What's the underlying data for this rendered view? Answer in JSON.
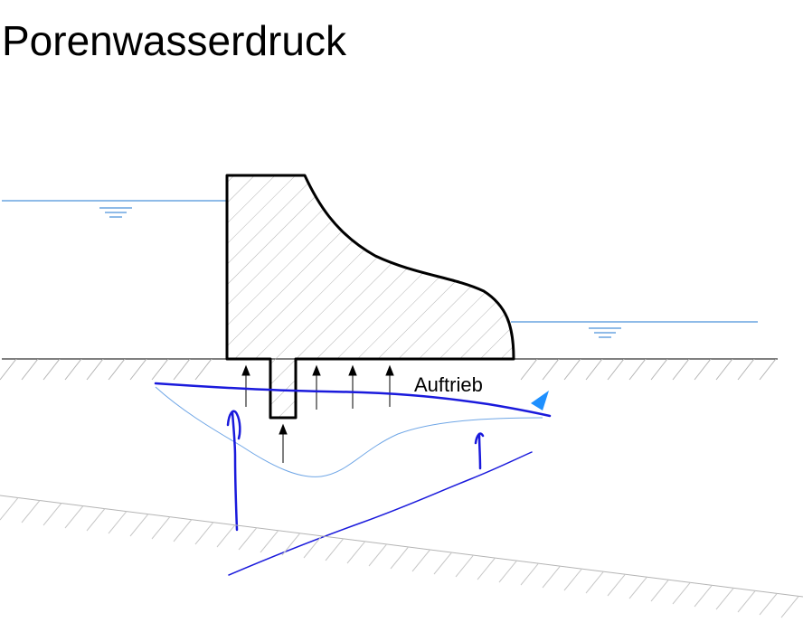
{
  "title": "Porenwasserdruck",
  "labels": {
    "uplift": "Auftrieb"
  },
  "colors": {
    "outline": "#000000",
    "hatch": "#b4b4b4",
    "water_line": "#1f77d0",
    "pen_dark": "#1a1adc",
    "pen_light": "#6fa6e6",
    "marker": "#1e90ff"
  },
  "icons": {
    "water_level_left": "water-level-icon",
    "water_level_right": "water-level-icon",
    "flow_marker": "triangle-marker-icon"
  }
}
